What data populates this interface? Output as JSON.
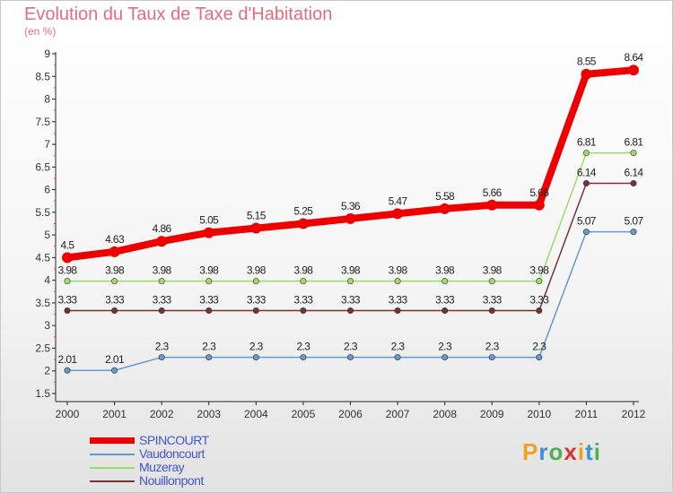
{
  "header": {
    "title": "Evolution du Taux de Taxe d'Habitation",
    "subtitle": "(en %)"
  },
  "chart_data": {
    "type": "line",
    "title": "Evolution du Taux de Taxe d'Habitation",
    "subtitle": "(en %)",
    "xlabel": "",
    "ylabel": "(en %)",
    "x": [
      "2000",
      "2001",
      "2002",
      "2003",
      "2004",
      "2005",
      "2006",
      "2007",
      "2008",
      "2009",
      "2010",
      "2011",
      "2012"
    ],
    "ylim": [
      1.5,
      9
    ],
    "yticks": [
      "1.5",
      "2",
      "2.5",
      "3",
      "3.5",
      "4",
      "4.5",
      "5",
      "5.5",
      "6",
      "6.5",
      "7",
      "7.5",
      "8",
      "8.5",
      "9"
    ],
    "grid": false,
    "legend_position": "bottom-left",
    "series": [
      {
        "name": "SPINCOURT",
        "color": "#ee0000",
        "values": [
          4.5,
          4.63,
          4.86,
          5.05,
          5.15,
          5.25,
          5.36,
          5.47,
          5.58,
          5.66,
          5.66,
          8.55,
          8.64
        ],
        "labels": [
          "4.5",
          "4.63",
          "4.86",
          "5.05",
          "5.15",
          "5.25",
          "5.36",
          "5.47",
          "5.58",
          "5.66",
          "5.66",
          "8.55",
          "8.64"
        ]
      },
      {
        "name": "Vaudoncourt",
        "color": "#6699cc",
        "values": [
          2.01,
          2.01,
          2.3,
          2.3,
          2.3,
          2.3,
          2.3,
          2.3,
          2.3,
          2.3,
          2.3,
          5.07,
          5.07
        ],
        "labels": [
          "2.01",
          "2.01",
          "2.3",
          "2.3",
          "2.3",
          "2.3",
          "2.3",
          "2.3",
          "2.3",
          "2.3",
          "2.3",
          "5.07",
          "5.07"
        ]
      },
      {
        "name": "Muzeray",
        "color": "#99dd66",
        "values": [
          3.98,
          3.98,
          3.98,
          3.98,
          3.98,
          3.98,
          3.98,
          3.98,
          3.98,
          3.98,
          3.98,
          6.81,
          6.81
        ],
        "labels": [
          "3.98",
          "3.98",
          "3.98",
          "3.98",
          "3.98",
          "3.98",
          "3.98",
          "3.98",
          "3.98",
          "3.98",
          "3.98",
          "6.81",
          "6.81"
        ]
      },
      {
        "name": "Nouillonpont",
        "color": "#773333",
        "values": [
          3.33,
          3.33,
          3.33,
          3.33,
          3.33,
          3.33,
          3.33,
          3.33,
          3.33,
          3.33,
          3.33,
          6.14,
          6.14
        ],
        "labels": [
          "3.33",
          "3.33",
          "3.33",
          "3.33",
          "3.33",
          "3.33",
          "3.33",
          "3.33",
          "3.33",
          "3.33",
          "3.33",
          "6.14",
          "6.14"
        ]
      }
    ]
  },
  "legend": {
    "items": [
      {
        "label": "SPINCOURT",
        "color": "#ee0000"
      },
      {
        "label": "Vaudoncourt",
        "color": "#6699cc"
      },
      {
        "label": "Muzeray",
        "color": "#99dd66"
      },
      {
        "label": "Nouillonpont",
        "color": "#773333"
      }
    ]
  },
  "brand": {
    "logo_text": "Proxiti",
    "letters": [
      {
        "ch": "P",
        "color": "#f0a020"
      },
      {
        "ch": "r",
        "color": "#4090d0"
      },
      {
        "ch": "o",
        "color": "#50b050"
      },
      {
        "ch": "x",
        "color": "#e03030"
      },
      {
        "ch": "i",
        "color": "#f0a020"
      },
      {
        "ch": "t",
        "color": "#4090d0"
      },
      {
        "ch": "i",
        "color": "#50b050"
      }
    ]
  }
}
